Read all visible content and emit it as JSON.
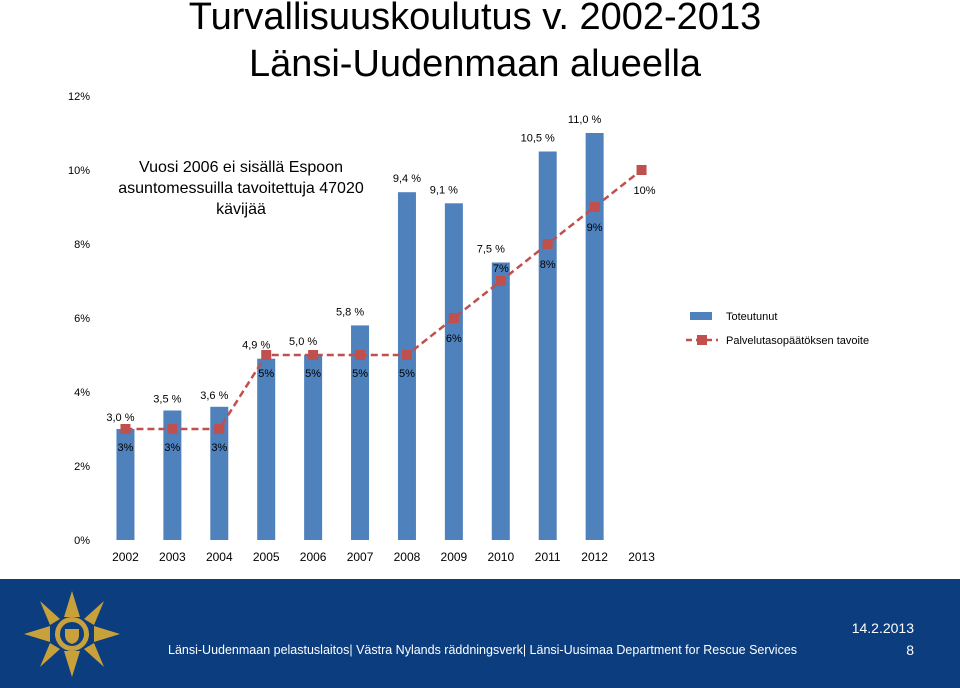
{
  "title": "Turvallisuuskoulutus v. 2002-2013 Länsi-Uudenmaan alueella",
  "note": "Vuosi 2006 ei sisällä Espoon asuntomessuilla tavoitettuja 47020 kävijää",
  "colors": {
    "bar": "#4f81bd",
    "target_line": "#c0504d",
    "footer_bg": "#0b3d7f"
  },
  "chart_data": {
    "type": "bar",
    "categories": [
      "2002",
      "2003",
      "2004",
      "2005",
      "2006",
      "2007",
      "2008",
      "2009",
      "2010",
      "2011",
      "2012",
      "2013"
    ],
    "ylim": [
      0,
      12
    ],
    "yticks": [
      "0%",
      "2%",
      "4%",
      "6%",
      "8%",
      "10%",
      "12%"
    ],
    "grid": false,
    "legend_position": "right",
    "series": [
      {
        "name": "Toteutunut",
        "type": "bar",
        "values": [
          3.0,
          3.5,
          3.6,
          4.9,
          5.0,
          5.8,
          9.4,
          9.1,
          7.5,
          10.5,
          11.0,
          null
        ],
        "labels": [
          "3,0 %",
          "3,5 %",
          "3,6 %",
          "4,9 %",
          "5,0 %",
          "5,8 %",
          "9,4 %",
          "9,1 %",
          "7,5 %",
          "10,5 %",
          "11,0 %",
          ""
        ]
      },
      {
        "name": "Palvelutasopäätöksen tavoite",
        "type": "line",
        "values": [
          3,
          3,
          3,
          5,
          5,
          5,
          5,
          6,
          7,
          8,
          9,
          10
        ],
        "labels": [
          "3%",
          "3%",
          "3%",
          "5%",
          "5%",
          "5%",
          "5%",
          "6%",
          "7%",
          "8%",
          "9%",
          "10%"
        ]
      }
    ]
  },
  "footer": {
    "date": "14.2.2013",
    "text": "Länsi-Uudenmaan pelastuslaitos| Västra Nylands räddningsverk| Länsi-Uusimaa Department for Rescue Services",
    "page": "8"
  }
}
